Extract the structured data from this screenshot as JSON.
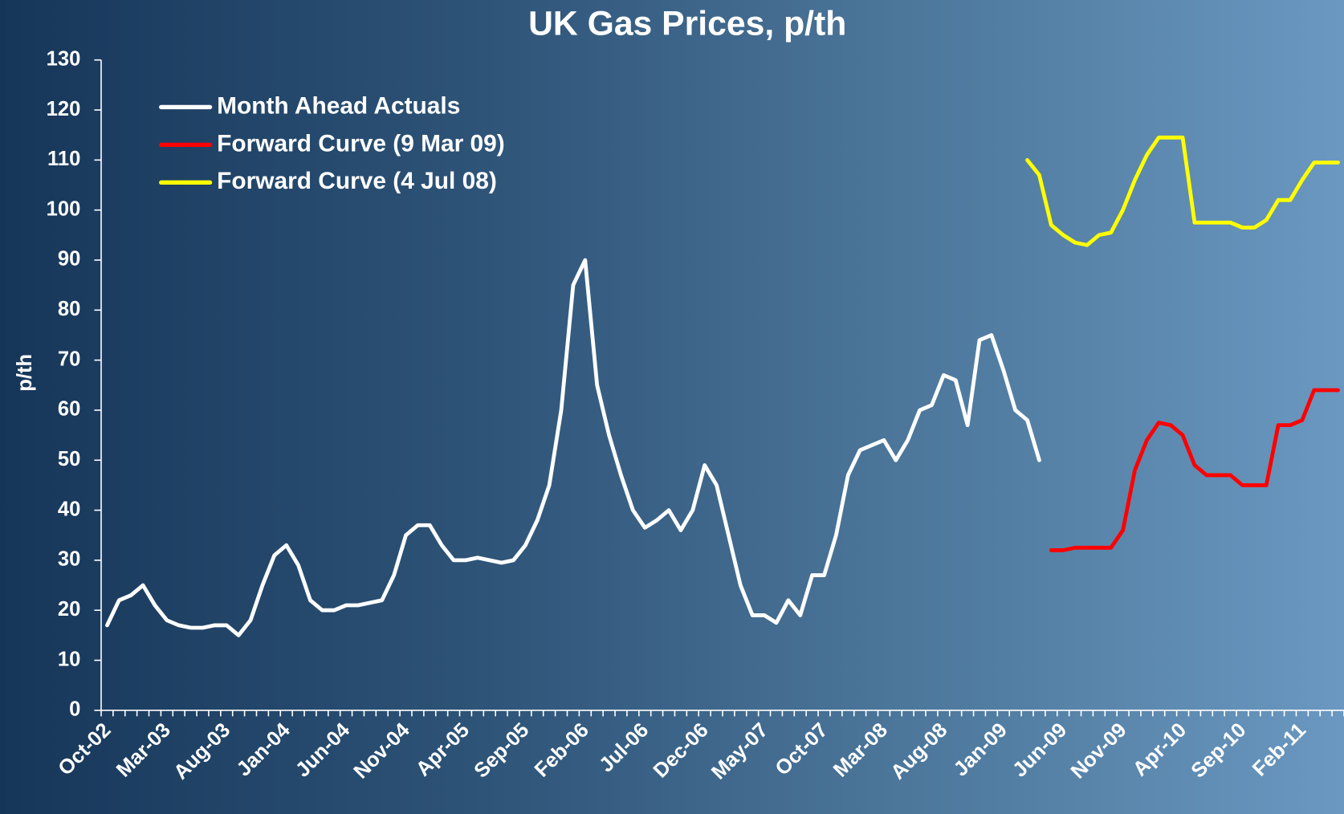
{
  "chart_data": {
    "type": "line",
    "title": "UK Gas Prices, p/th",
    "y_label": "p/th",
    "categories": [
      "Oct-02",
      null,
      null,
      null,
      null,
      "Mar-03",
      null,
      null,
      null,
      null,
      "Aug-03",
      null,
      null,
      null,
      null,
      "Jan-04",
      null,
      null,
      null,
      null,
      "Jun-04",
      null,
      null,
      null,
      null,
      "Nov-04",
      null,
      null,
      null,
      null,
      "Apr-05",
      null,
      null,
      null,
      null,
      "Sep-05",
      null,
      null,
      null,
      null,
      "Feb-06",
      null,
      null,
      null,
      null,
      "Jul-06",
      null,
      null,
      null,
      null,
      "Dec-06",
      null,
      null,
      null,
      null,
      "May-07",
      null,
      null,
      null,
      null,
      "Oct-07",
      null,
      null,
      null,
      null,
      "Mar-08",
      null,
      null,
      null,
      null,
      "Aug-08",
      null,
      null,
      null,
      null,
      "Jan-09",
      null,
      null,
      null,
      null,
      "Jun-09",
      null,
      null,
      null,
      null,
      "Nov-09",
      null,
      null,
      null,
      null,
      "Apr-10",
      null,
      null,
      null,
      null,
      "Sep-10",
      null,
      null,
      null,
      null,
      "Feb-11",
      null,
      null,
      null
    ],
    "series": [
      {
        "name": "Month Ahead Actuals",
        "color": "#ffffff",
        "values": [
          17,
          22,
          23,
          25,
          21,
          18,
          17,
          16.5,
          16.5,
          17,
          17,
          15,
          18,
          25,
          31,
          33,
          29,
          22,
          20,
          20,
          21,
          21,
          21.5,
          22,
          27,
          35,
          37,
          37,
          33,
          30,
          30,
          30.5,
          30,
          29.5,
          30,
          33,
          38,
          45,
          60,
          85,
          90,
          65,
          55,
          47,
          40,
          36.5,
          38,
          40,
          36,
          40,
          49,
          45,
          35,
          25,
          19,
          19,
          17.5,
          22,
          19,
          27,
          27,
          35,
          47,
          52,
          53,
          54,
          50,
          54,
          60,
          61,
          67,
          66,
          57,
          74,
          75,
          68,
          60,
          58,
          50,
          null,
          null,
          null,
          null,
          null,
          null,
          null,
          null,
          null,
          null,
          null,
          null,
          null,
          null,
          null,
          null,
          null,
          null,
          null,
          null,
          null,
          null,
          null,
          null,
          null
        ]
      },
      {
        "name": "Forward Curve (9 Mar 09)",
        "color": "#ff0000",
        "values": [
          null,
          null,
          null,
          null,
          null,
          null,
          null,
          null,
          null,
          null,
          null,
          null,
          null,
          null,
          null,
          null,
          null,
          null,
          null,
          null,
          null,
          null,
          null,
          null,
          null,
          null,
          null,
          null,
          null,
          null,
          null,
          null,
          null,
          null,
          null,
          null,
          null,
          null,
          null,
          null,
          null,
          null,
          null,
          null,
          null,
          null,
          null,
          null,
          null,
          null,
          null,
          null,
          null,
          null,
          null,
          null,
          null,
          null,
          null,
          null,
          null,
          null,
          null,
          null,
          null,
          null,
          null,
          null,
          null,
          null,
          null,
          null,
          null,
          null,
          null,
          null,
          null,
          null,
          null,
          32,
          32,
          32.5,
          32.5,
          32.5,
          32.5,
          36,
          48,
          54,
          57.5,
          57,
          55,
          49,
          47,
          47,
          47,
          45,
          45,
          45,
          57,
          57,
          58,
          64,
          64,
          64
        ]
      },
      {
        "name": "Forward Curve (4 Jul 08)",
        "color": "#ffff00",
        "values": [
          null,
          null,
          null,
          null,
          null,
          null,
          null,
          null,
          null,
          null,
          null,
          null,
          null,
          null,
          null,
          null,
          null,
          null,
          null,
          null,
          null,
          null,
          null,
          null,
          null,
          null,
          null,
          null,
          null,
          null,
          null,
          null,
          null,
          null,
          null,
          null,
          null,
          null,
          null,
          null,
          null,
          null,
          null,
          null,
          null,
          null,
          null,
          null,
          null,
          null,
          null,
          null,
          null,
          null,
          null,
          null,
          null,
          null,
          null,
          null,
          null,
          null,
          null,
          null,
          null,
          null,
          null,
          null,
          null,
          null,
          null,
          null,
          null,
          null,
          null,
          null,
          null,
          110,
          107,
          97,
          95,
          93.5,
          93,
          95,
          95.5,
          100,
          106,
          111,
          114.5,
          114.5,
          114.5,
          97.5,
          97.5,
          97.5,
          97.5,
          96.5,
          96.5,
          98,
          102,
          102,
          106,
          109.5,
          109.5,
          109.5
        ]
      }
    ],
    "ylim": [
      0,
      130
    ],
    "yticks": [
      0,
      10,
      20,
      30,
      40,
      50,
      60,
      70,
      80,
      90,
      100,
      110,
      120,
      130
    ],
    "grid": false,
    "legend": "upper left"
  }
}
